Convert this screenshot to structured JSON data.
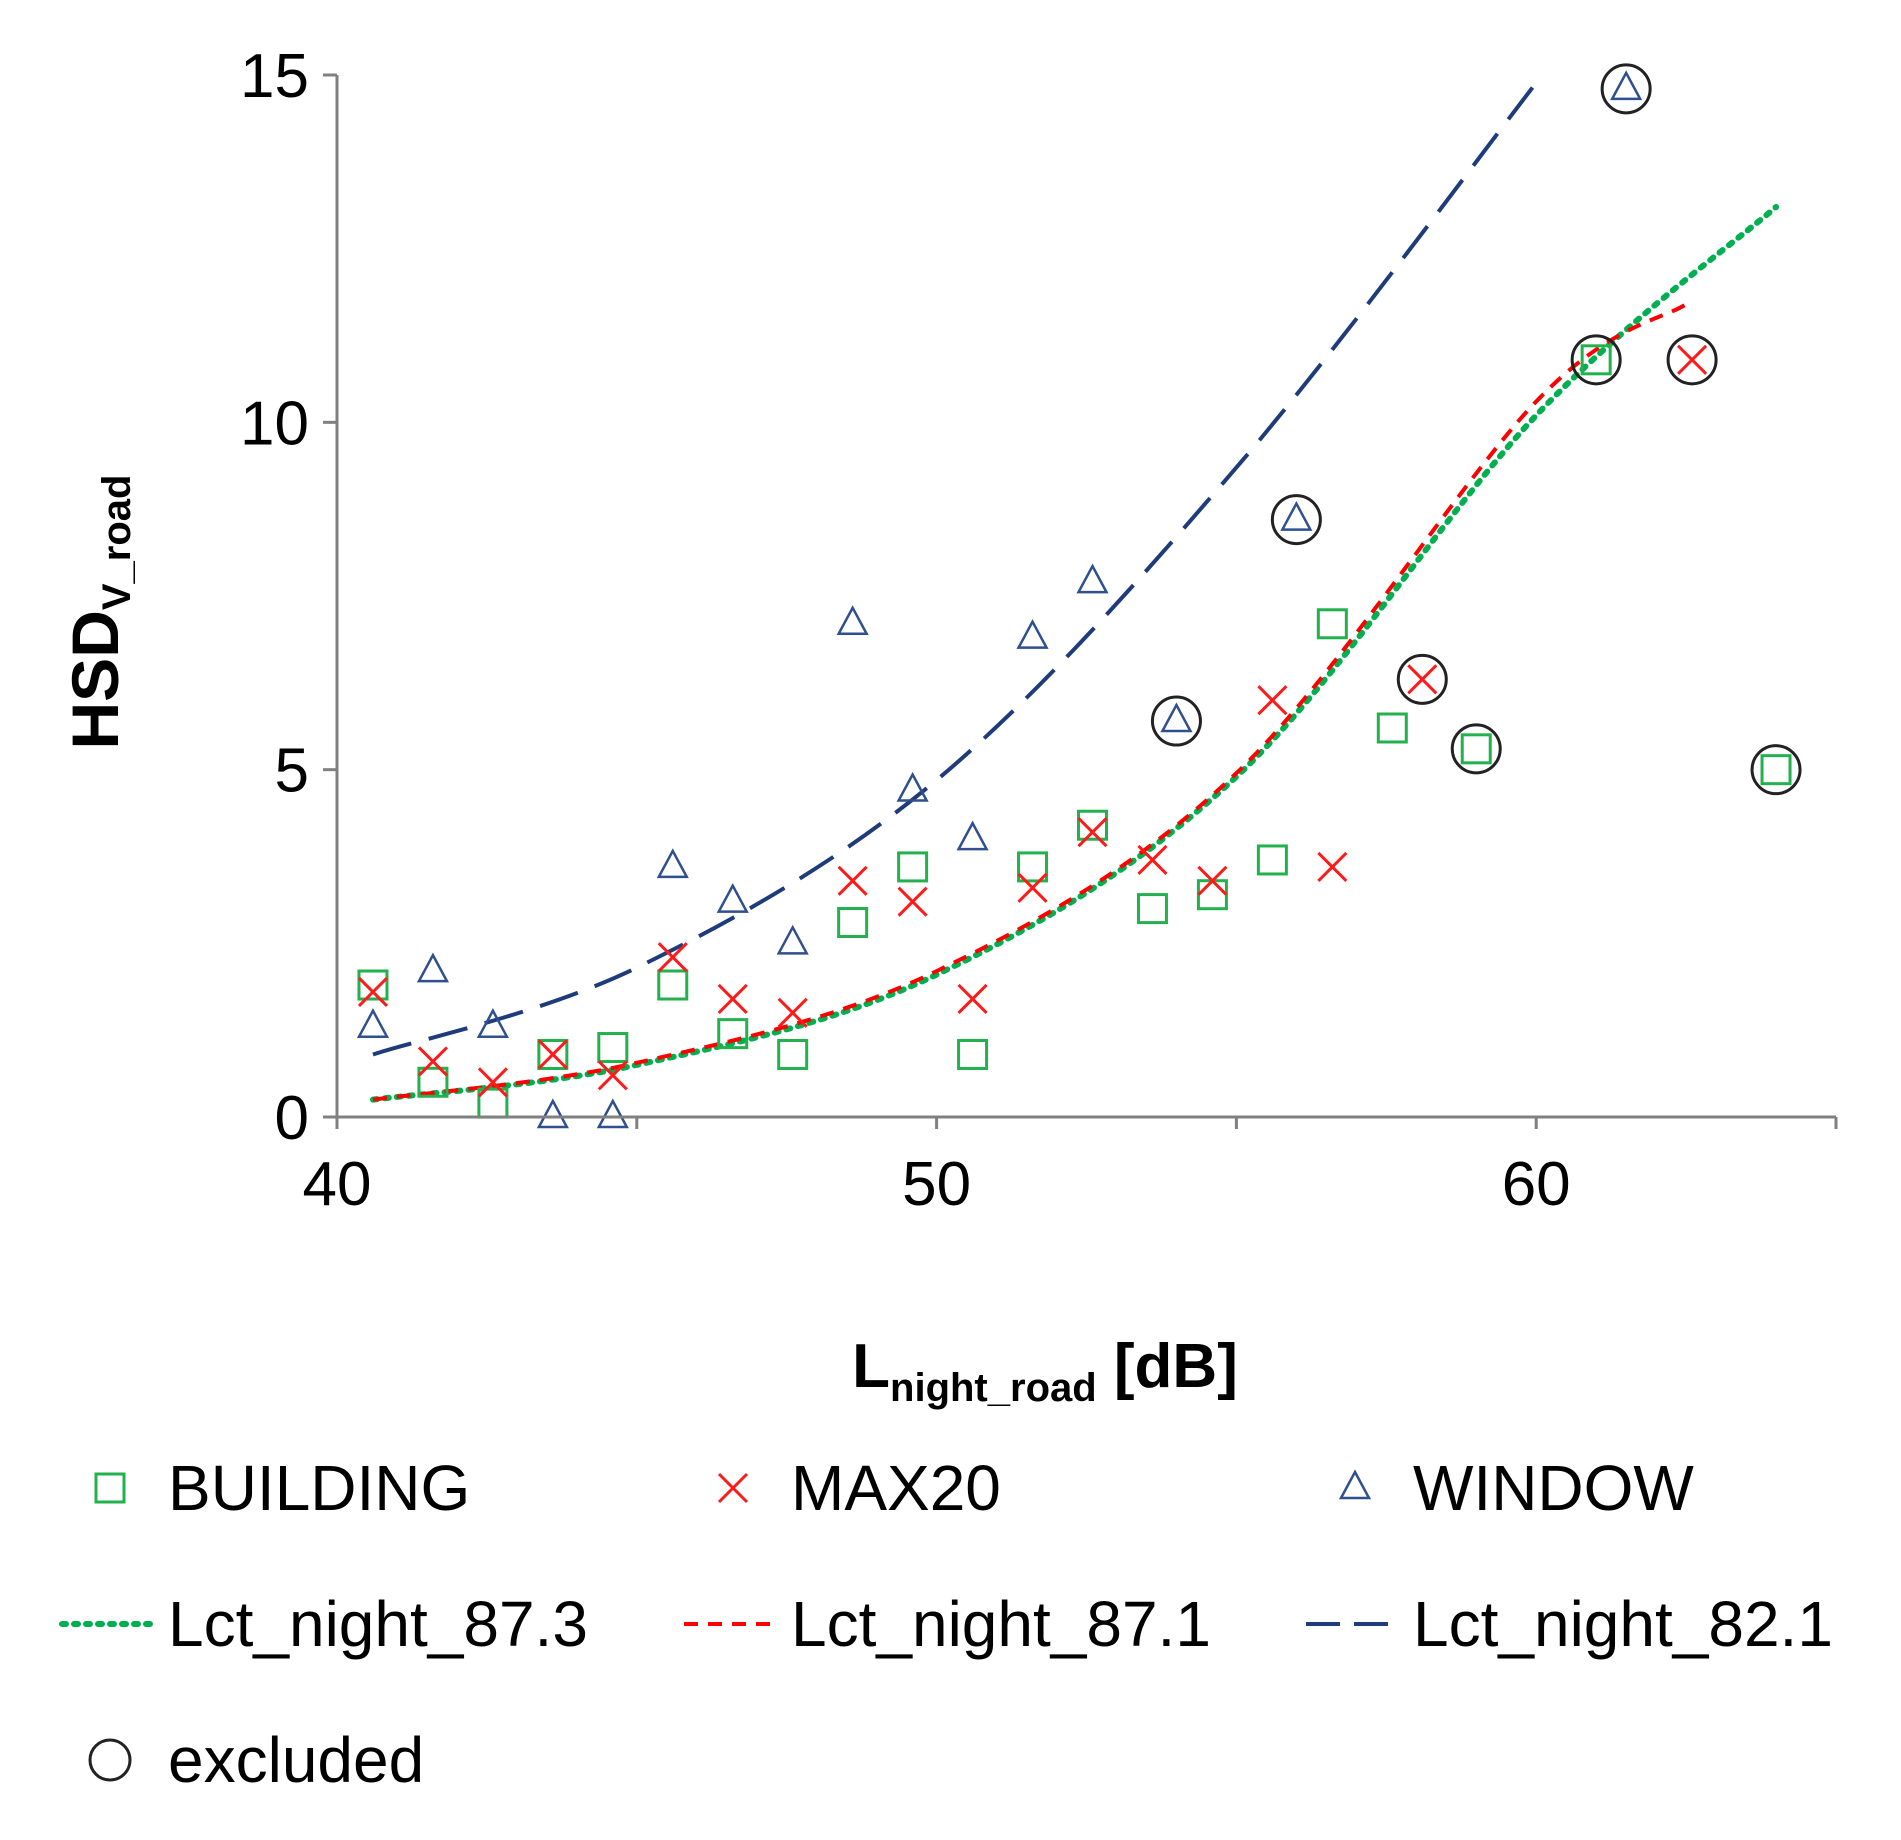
{
  "chart_data": {
    "type": "scatter",
    "title": "",
    "xlabel": {
      "main": "L",
      "sub": "night_road",
      "suffix": " [dB]"
    },
    "ylabel": {
      "main": "HSD",
      "sub": "V_road"
    },
    "xlim": [
      40,
      65
    ],
    "ylim": [
      0,
      15
    ],
    "x_ticks": [
      40,
      50,
      60
    ],
    "y_ticks": [
      0,
      5,
      10,
      15
    ],
    "series": [
      {
        "name": "BUILDING",
        "marker": "square",
        "color": "#22b14c",
        "points": [
          [
            40.6,
            1.9
          ],
          [
            41.6,
            0.5
          ],
          [
            42.6,
            0.2
          ],
          [
            43.6,
            0.9
          ],
          [
            44.6,
            1.0
          ],
          [
            45.6,
            1.9
          ],
          [
            46.6,
            1.2
          ],
          [
            47.6,
            0.9
          ],
          [
            48.6,
            2.8
          ],
          [
            49.6,
            3.6
          ],
          [
            50.6,
            0.9
          ],
          [
            51.6,
            3.6
          ],
          [
            52.6,
            4.2
          ],
          [
            53.6,
            3.0
          ],
          [
            54.6,
            3.2
          ],
          [
            55.6,
            3.7
          ],
          [
            56.6,
            7.1
          ],
          [
            57.6,
            5.6
          ],
          [
            59.0,
            5.3
          ],
          [
            61.0,
            10.9
          ],
          [
            64.0,
            5.0
          ]
        ]
      },
      {
        "name": "MAX20",
        "marker": "x",
        "color": "#ff1a1a",
        "points": [
          [
            40.6,
            1.8
          ],
          [
            41.6,
            0.8
          ],
          [
            42.6,
            0.5
          ],
          [
            43.6,
            0.9
          ],
          [
            44.6,
            0.6
          ],
          [
            45.6,
            2.3
          ],
          [
            46.6,
            1.7
          ],
          [
            47.6,
            1.5
          ],
          [
            48.6,
            3.4
          ],
          [
            49.6,
            3.1
          ],
          [
            50.6,
            1.7
          ],
          [
            51.6,
            3.3
          ],
          [
            52.6,
            4.1
          ],
          [
            53.6,
            3.7
          ],
          [
            54.6,
            3.4
          ],
          [
            55.6,
            6.0
          ],
          [
            56.6,
            3.6
          ],
          [
            58.1,
            6.3
          ],
          [
            62.6,
            10.9
          ]
        ]
      },
      {
        "name": "WINDOW",
        "marker": "triangle",
        "color": "#2f4f8f",
        "points": [
          [
            40.6,
            1.3
          ],
          [
            41.6,
            2.1
          ],
          [
            42.6,
            1.3
          ],
          [
            43.6,
            0.0
          ],
          [
            44.6,
            0.0
          ],
          [
            45.6,
            3.6
          ],
          [
            46.6,
            3.1
          ],
          [
            47.6,
            2.5
          ],
          [
            48.6,
            7.1
          ],
          [
            49.6,
            4.7
          ],
          [
            50.6,
            4.0
          ],
          [
            51.6,
            6.9
          ],
          [
            52.6,
            7.7
          ],
          [
            54.0,
            5.7
          ],
          [
            56.0,
            8.6
          ],
          [
            61.5,
            14.8
          ]
        ]
      }
    ],
    "curves": [
      {
        "name": "Lct_night_87.3",
        "style": "dotted",
        "color": "#00b050",
        "x_range": [
          40.6,
          64.0
        ],
        "points": [
          [
            40.6,
            0.25
          ],
          [
            45.0,
            0.75
          ],
          [
            50.0,
            2.05
          ],
          [
            55.0,
            4.9
          ],
          [
            60.0,
            10.1
          ],
          [
            64.0,
            13.1
          ]
        ]
      },
      {
        "name": "Lct_night_87.1",
        "style": "dashed",
        "color": "#ff0000",
        "x_range": [
          40.6,
          62.5
        ],
        "points": [
          [
            40.6,
            0.25
          ],
          [
            45.0,
            0.78
          ],
          [
            50.0,
            2.1
          ],
          [
            55.0,
            4.95
          ],
          [
            60.0,
            10.3
          ],
          [
            62.5,
            11.7
          ]
        ]
      },
      {
        "name": "Lct_night_82.1",
        "style": "longdash",
        "color": "#1f3c7a",
        "x_range": [
          40.6,
          60.1
        ],
        "points": [
          [
            40.6,
            0.9
          ],
          [
            45.0,
            2.15
          ],
          [
            50.0,
            4.85
          ],
          [
            55.0,
            9.35
          ],
          [
            60.1,
            15.0
          ]
        ]
      }
    ],
    "excluded_label": "excluded",
    "excluded_points": [
      [
        54.0,
        5.7
      ],
      [
        56.0,
        8.6
      ],
      [
        58.1,
        6.3
      ],
      [
        59.0,
        5.3
      ],
      [
        61.0,
        10.9
      ],
      [
        61.5,
        14.8
      ],
      [
        62.6,
        10.9
      ],
      [
        64.0,
        5.0
      ]
    ],
    "legend": {
      "position": "bottom",
      "rows": [
        [
          "BUILDING",
          "MAX20",
          "WINDOW"
        ],
        [
          "Lct_night_87.3",
          "Lct_night_87.1",
          "Lct_night_82.1"
        ],
        [
          "excluded"
        ]
      ]
    },
    "grid": false
  }
}
